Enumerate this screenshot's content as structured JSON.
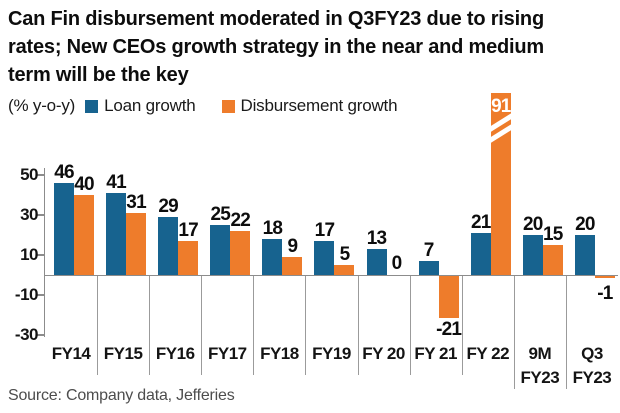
{
  "title_lines": [
    "Can Fin disbursement moderated in Q3FY23 due to rising",
    "rates; New CEOs growth strategy in the near and medium",
    "term will be the key"
  ],
  "legend": {
    "units_label": "(% y-o-y)",
    "series": [
      {
        "label": "Loan growth",
        "color": "#17638f"
      },
      {
        "label": "Disbursement growth",
        "color": "#ee7c2b"
      }
    ]
  },
  "source": "Source: Company data, Jefferies",
  "colors": {
    "loan_growth": "#17638f",
    "disbursement_growth": "#ee7c2b",
    "axis": "#8c8c8c",
    "separator": "#9b9b9b",
    "text": "#0d0d0d",
    "source_text": "#4d4d4d"
  },
  "chart_data": {
    "type": "bar",
    "title": "Can Fin disbursement moderated in Q3FY23 due to rising rates; New CEOs growth strategy in the near and medium term will be the key",
    "ylabel": "(% y-o-y)",
    "xlabel": "",
    "categories": [
      "FY14",
      "FY15",
      "FY16",
      "FY17",
      "FY18",
      "FY19",
      "FY 20",
      "FY 21",
      "FY 22",
      "9M FY23",
      "Q3 FY23"
    ],
    "x_display_lines": [
      [
        "FY14"
      ],
      [
        "FY15"
      ],
      [
        "FY16"
      ],
      [
        "FY17"
      ],
      [
        "FY18"
      ],
      [
        "FY19"
      ],
      [
        "FY 20"
      ],
      [
        "FY 21"
      ],
      [
        "FY 22"
      ],
      [
        "9M",
        "FY23"
      ],
      [
        "Q3",
        "FY23"
      ]
    ],
    "series": [
      {
        "name": "Loan growth",
        "color": "#17638f",
        "values": [
          46,
          41,
          29,
          25,
          18,
          17,
          13,
          7,
          21,
          20,
          20
        ]
      },
      {
        "name": "Disbursement growth",
        "color": "#ee7c2b",
        "values": [
          40,
          31,
          17,
          22,
          9,
          5,
          0,
          -21,
          91,
          15,
          -1
        ]
      }
    ],
    "yticks": [
      50,
      30,
      10,
      -10,
      -30
    ],
    "ylim": [
      -38,
      58
    ],
    "grid": "category-separator-lines-below-axis-only",
    "legend_position": "top-left",
    "annotations": {
      "truncated_bar": {
        "category": "FY 22",
        "series": "Disbursement growth",
        "display_value": 91,
        "note": "bar truncated with white axis-break slashes, value shown in white inside bar top"
      }
    }
  }
}
